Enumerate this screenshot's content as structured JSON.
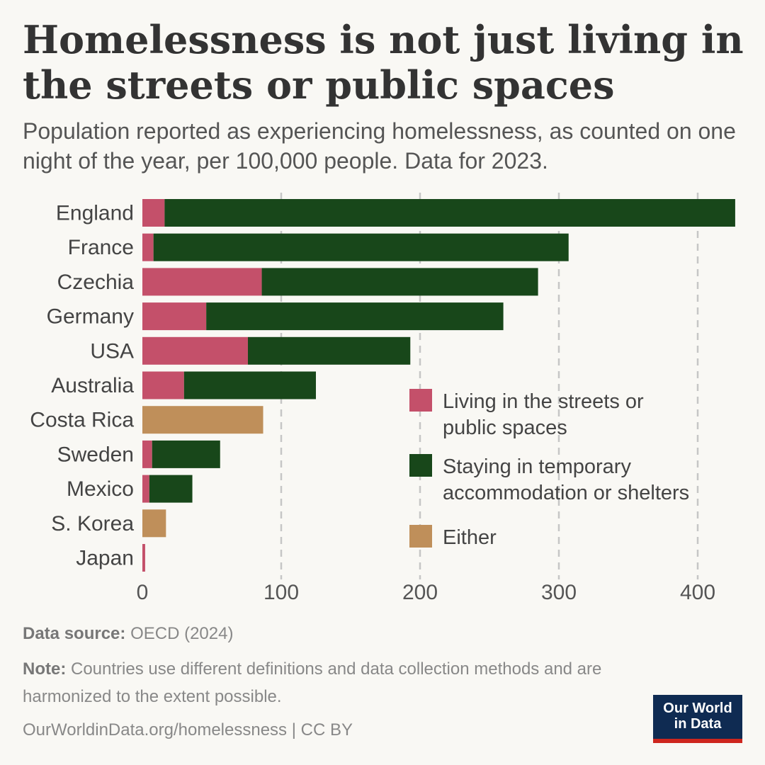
{
  "header": {
    "title": "Homelessness is not just living in the streets or public spaces",
    "subtitle": "Population reported as experiencing homelessness, as counted on one night of the year, per 100,000 people. Data for 2023."
  },
  "footer": {
    "source_label": "Data source:",
    "source_text": "OECD (2024)",
    "note_label": "Note:",
    "note_text": "Countries use different definitions and data collection methods and are harmonized to the extent possible.",
    "url": "OurWorldinData.org/homelessness | CC BY",
    "logo_line1": "Our World",
    "logo_line2": "in Data"
  },
  "chart_data": {
    "type": "bar",
    "orientation": "horizontal",
    "stacked": true,
    "categories": [
      "England",
      "France",
      "Czechia",
      "Germany",
      "USA",
      "Australia",
      "Costa Rica",
      "Sweden",
      "Mexico",
      "S. Korea",
      "Japan"
    ],
    "series": [
      {
        "name": "Living in the streets or public spaces",
        "color": "#c4506a",
        "values": [
          16,
          8,
          86,
          46,
          76,
          30,
          null,
          7,
          5,
          null,
          2
        ]
      },
      {
        "name": "Staying in temporary accommodation or shelters",
        "color": "#18471a",
        "values": [
          411,
          299,
          199,
          214,
          117,
          95,
          null,
          49,
          31,
          null,
          null
        ]
      },
      {
        "name": "Either",
        "color": "#bf8f5a",
        "values": [
          null,
          null,
          null,
          null,
          null,
          null,
          87,
          null,
          null,
          17,
          null
        ]
      }
    ],
    "xlim": [
      0,
      430
    ],
    "xticks": [
      "0",
      "100",
      "200",
      "300",
      "400"
    ],
    "xtick_values": [
      0,
      100,
      200,
      300,
      400
    ],
    "grid": "vertical dashed",
    "legend_placement": "inside right"
  }
}
